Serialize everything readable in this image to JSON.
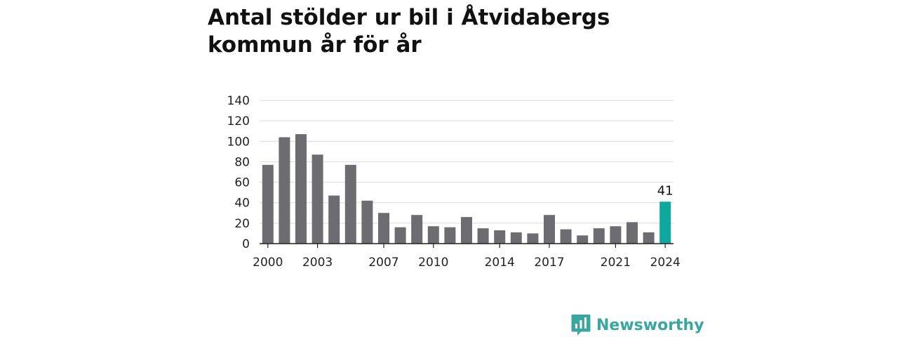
{
  "title": "Antal stölder ur bil i Åtvidabergs kommun år för år",
  "brand": {
    "name": "Newsworthy",
    "icon": "newsworthy-logo-icon",
    "color": "#3aa6a0"
  },
  "colors": {
    "bar": "#6d6c71",
    "highlight": "#0ea89e",
    "grid": "#d9d9d9",
    "axis": "#222222"
  },
  "chart_data": {
    "type": "bar",
    "title": "Antal stölder ur bil i Åtvidabergs kommun år för år",
    "xlabel": "",
    "ylabel": "",
    "categories": [
      2000,
      2001,
      2002,
      2003,
      2004,
      2005,
      2006,
      2007,
      2008,
      2009,
      2010,
      2011,
      2012,
      2013,
      2014,
      2015,
      2016,
      2017,
      2018,
      2019,
      2020,
      2021,
      2022,
      2023,
      2024
    ],
    "values": [
      77,
      104,
      107,
      87,
      47,
      77,
      42,
      30,
      16,
      28,
      17,
      16,
      26,
      15,
      13,
      11,
      10,
      28,
      14,
      8,
      15,
      17,
      21,
      11,
      41
    ],
    "ylim": [
      0,
      140
    ],
    "yticks": [
      0,
      20,
      40,
      60,
      80,
      100,
      120,
      140
    ],
    "xticks": [
      2000,
      2003,
      2007,
      2010,
      2014,
      2017,
      2021,
      2024
    ],
    "highlight": {
      "category": 2024,
      "label": "41"
    },
    "grid": true,
    "legend": "none"
  }
}
